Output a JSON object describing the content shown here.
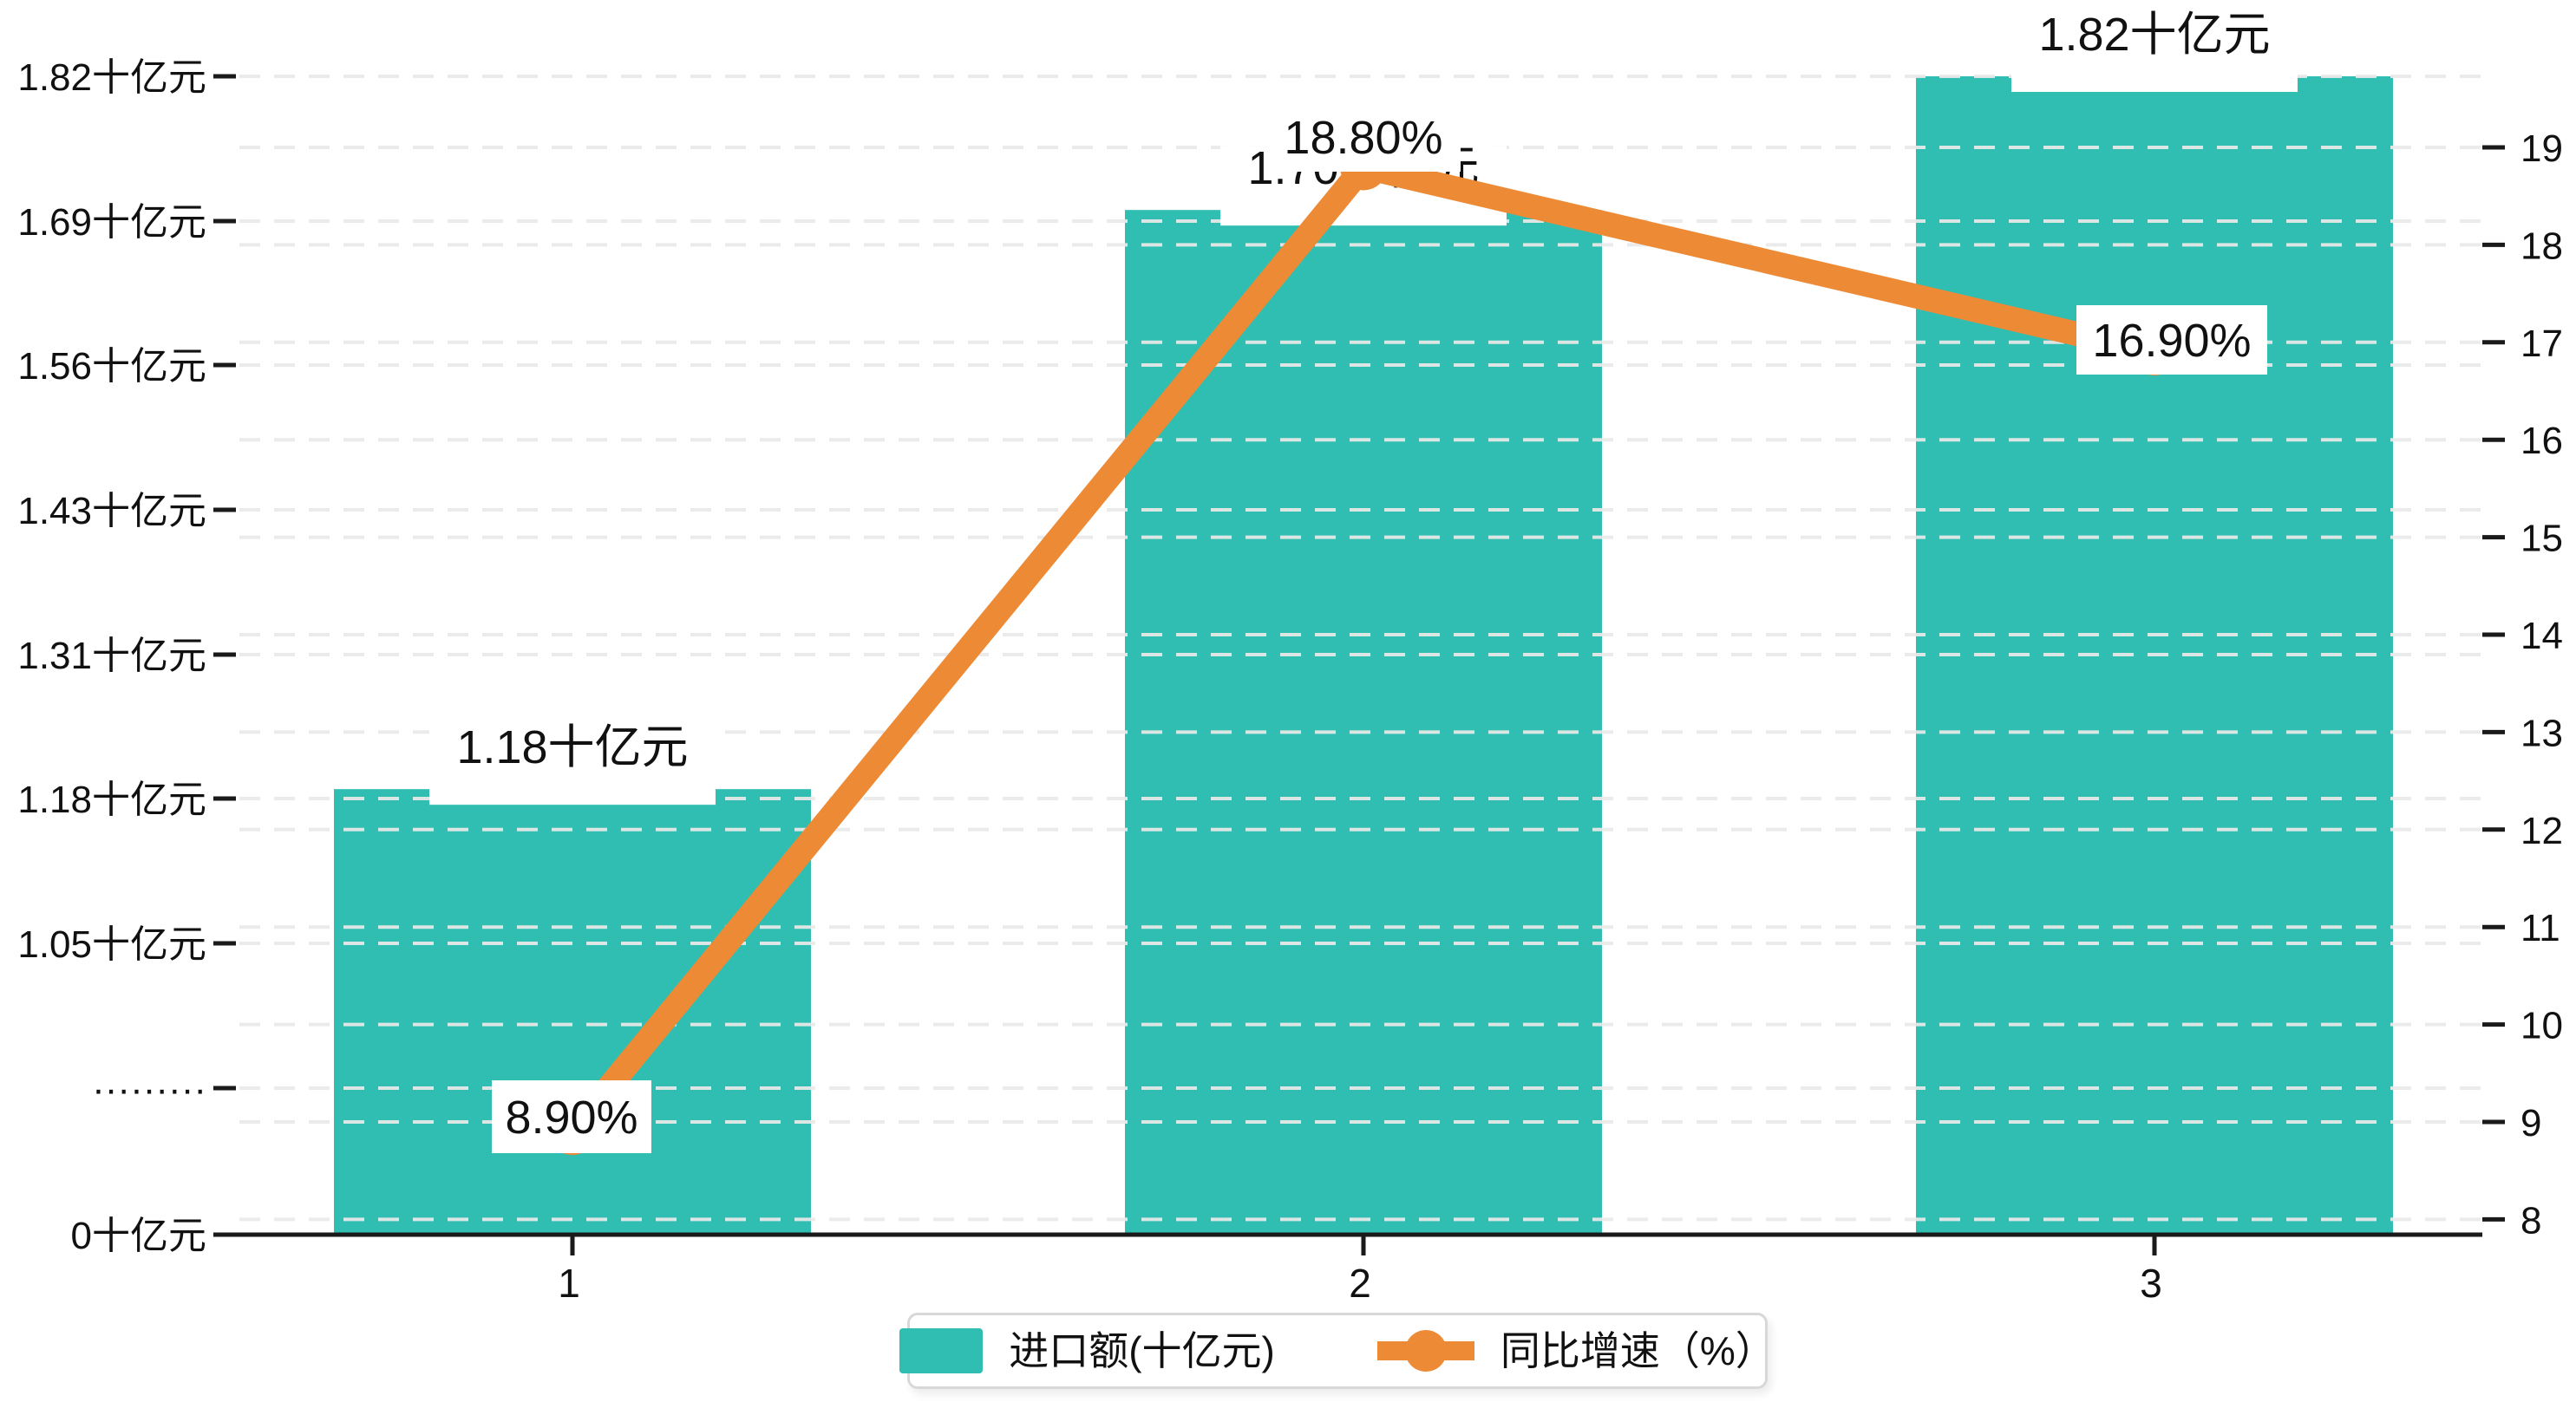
{
  "page": {
    "background": "#ffffff"
  },
  "colors": {
    "bar": "#30BEB2",
    "line": "#ED8A36",
    "grid": "#EAEAEA",
    "axis": "#1A1A1A",
    "text": "#111111",
    "label_box": "#FFFFFF",
    "legend_border": "#D8D8D8"
  },
  "legend": {
    "items": [
      {
        "label": "进口额(十亿元)",
        "marker": "bar-swatch"
      },
      {
        "label": "同比增速（%）",
        "marker": "line-dot"
      }
    ]
  },
  "chart_data": {
    "type": "bar",
    "combo_with": "line",
    "categories": [
      "1",
      "2",
      "3"
    ],
    "series": [
      {
        "name": "进口额(十亿元)",
        "type": "bar",
        "axis": "left",
        "unit": "十亿元",
        "values": [
          1.18,
          1.7,
          1.82
        ],
        "labels": [
          "1.18十亿元",
          "1.70十亿元",
          "1.82十亿元"
        ],
        "color": "#30BEB2"
      },
      {
        "name": "同比增速（%）",
        "type": "line",
        "axis": "right",
        "unit": "%",
        "values": [
          8.9,
          18.8,
          16.9
        ],
        "labels": [
          "8.90%",
          "18.80%",
          "16.90%"
        ],
        "color": "#ED8A36"
      }
    ],
    "left_axis": {
      "unit": "十亿元",
      "tick_labels": [
        "1.82十亿元",
        "1.69十亿元",
        "1.56十亿元",
        "1.43十亿元",
        "1.31十亿元",
        "1.18十亿元",
        "1.05十亿元",
        "·········",
        "0十亿元"
      ],
      "tick_values": [
        1.82,
        1.69,
        1.56,
        1.43,
        1.31,
        1.18,
        1.05,
        null,
        0
      ],
      "has_axis_break": true,
      "linear_top_range": [
        1.05,
        1.82
      ]
    },
    "right_axis": {
      "tick_labels": [
        "19",
        "18",
        "17",
        "16",
        "15",
        "14",
        "13",
        "12",
        "11",
        "10",
        "9",
        "8"
      ],
      "min": 8,
      "max": 19
    },
    "x_axis": {
      "tick_labels": [
        "1",
        "2",
        "3"
      ]
    },
    "gridlines": {
      "style": "dashed",
      "horizontal": true,
      "from_both_axes": true
    },
    "legend_position": "bottom-center"
  }
}
